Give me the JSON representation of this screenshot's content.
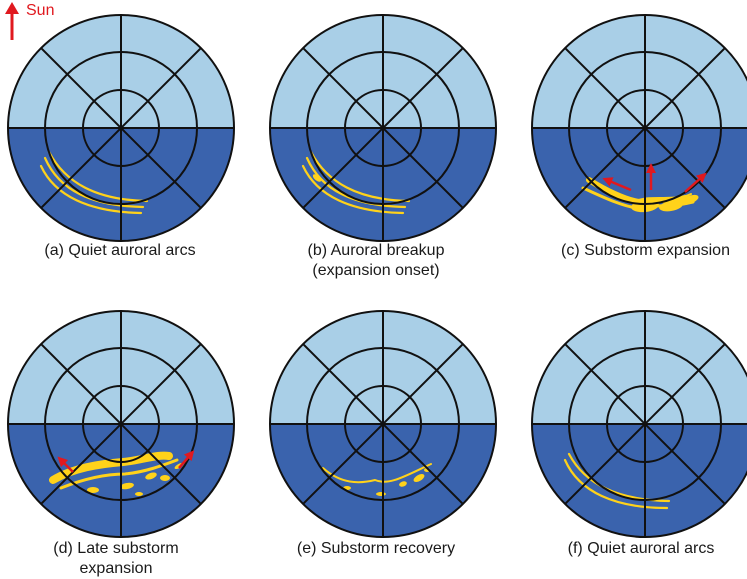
{
  "sun_label": "Sun",
  "colors": {
    "dayside": "#a9cfe7",
    "nightside": "#3a63ad",
    "grid": "#111111",
    "aurora": "#ffd21a",
    "arrow": "#e0191f"
  },
  "panels": [
    {
      "id": "a",
      "caption_line1": "(a) Quiet auroral arcs",
      "caption_line2": "",
      "aurora": "quiet-arcs",
      "arrows": 0
    },
    {
      "id": "b",
      "caption_line1": "(b) Auroral breakup",
      "caption_line2": "(expansion onset)",
      "aurora": "breakup-arcs",
      "arrows": 0
    },
    {
      "id": "c",
      "caption_line1": "(c) Substorm expansion",
      "caption_line2": "",
      "aurora": "expansion-bulge",
      "arrows": 3
    },
    {
      "id": "d",
      "caption_line1": "(d) Late substorm",
      "caption_line2": "expansion",
      "aurora": "late-expansion",
      "arrows": 2
    },
    {
      "id": "e",
      "caption_line1": "(e) Substorm recovery",
      "caption_line2": "",
      "aurora": "recovery-patches",
      "arrows": 0
    },
    {
      "id": "f",
      "caption_line1": "(f) Quiet auroral arcs",
      "caption_line2": "",
      "aurora": "quiet-arcs-thin",
      "arrows": 0
    }
  ]
}
